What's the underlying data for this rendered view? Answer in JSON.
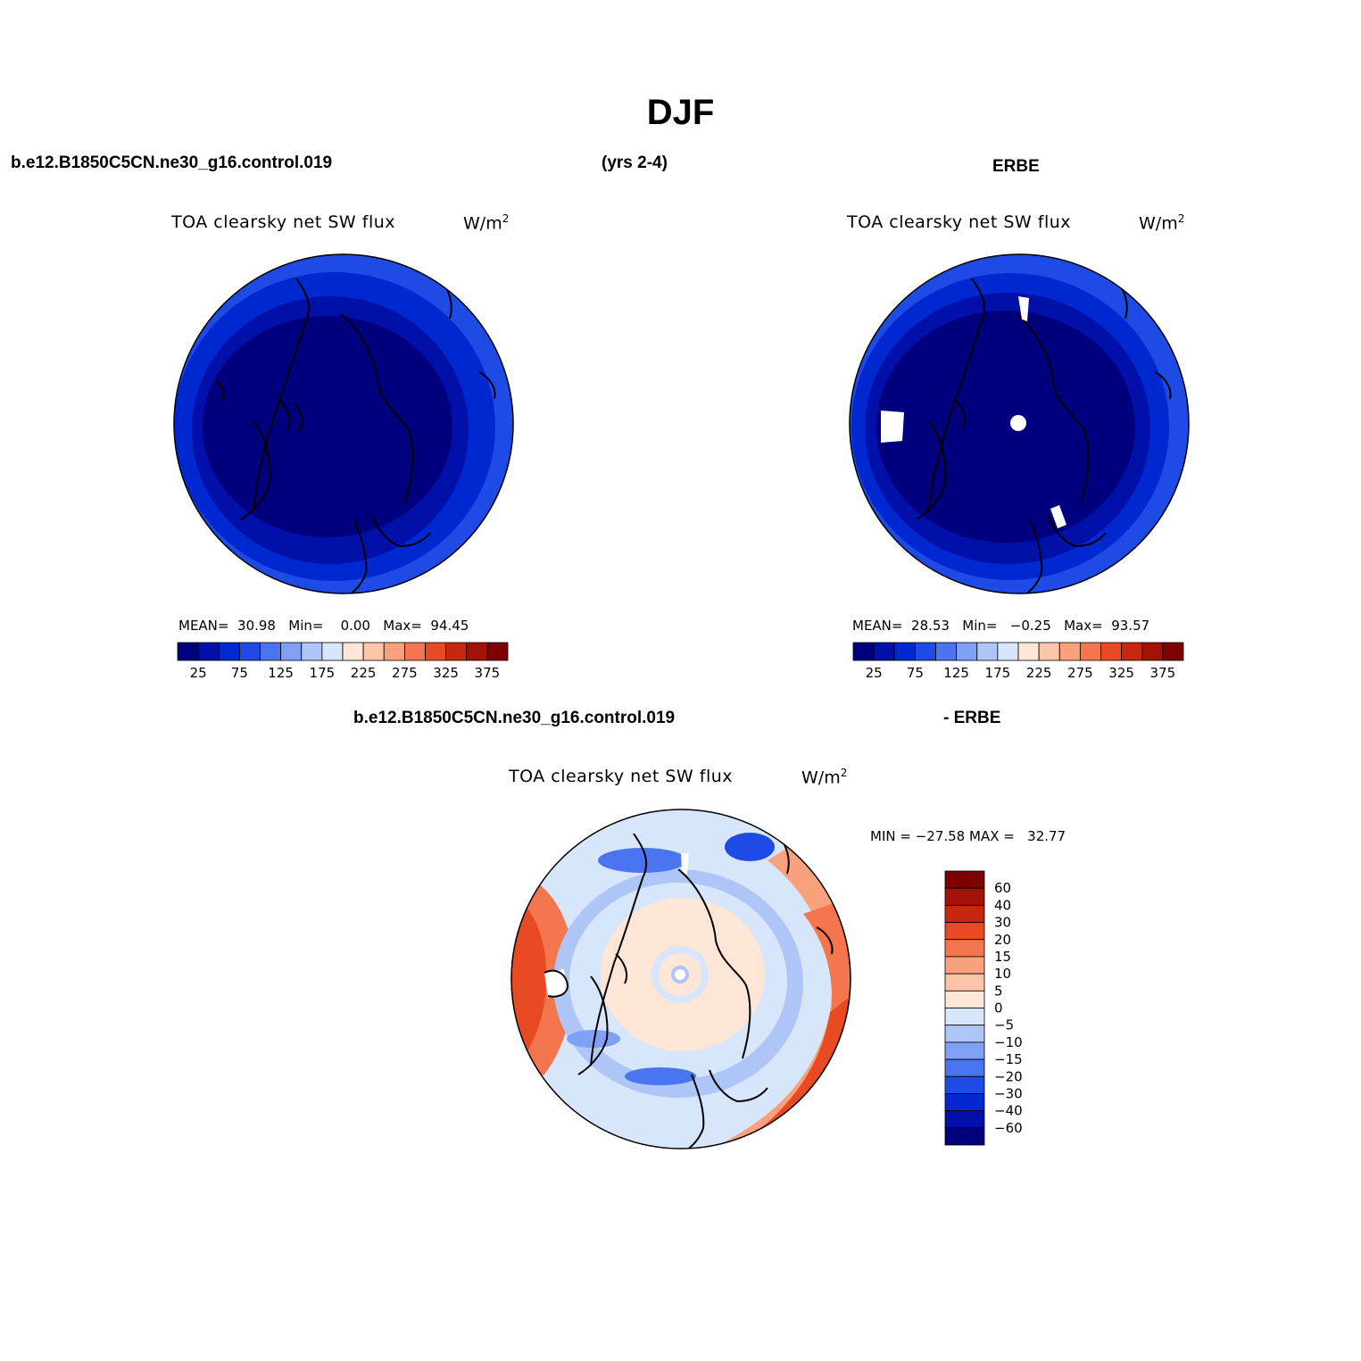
{
  "title": "DJF",
  "header": {
    "left": "b.e12.B1850C5CN.ne30_g16.control.019",
    "center": "(yrs 2-4)",
    "right": "ERBE"
  },
  "diff_header": {
    "left": "b.e12.B1850C5CN.ne30_g16.control.019",
    "right": "- ERBE"
  },
  "panels": [
    {
      "title": "TOA clearsky net SW flux",
      "units_base": "W/m",
      "units_sup": "2",
      "stats": {
        "mean_label": "MEAN=",
        "mean": "30.98",
        "min_label": "Min=",
        "min": "0.00",
        "max_label": "Max=",
        "max": "94.45"
      }
    },
    {
      "title": "TOA clearsky net SW flux",
      "units_base": "W/m",
      "units_sup": "2",
      "stats": {
        "mean_label": "MEAN=",
        "mean": "28.53",
        "min_label": "Min=",
        "min": "−0.25",
        "max_label": "Max=",
        "max": "93.57"
      }
    },
    {
      "title": "TOA clearsky net SW flux",
      "units_base": "W/m",
      "units_sup": "2",
      "stats": {
        "min_label": "MIN =",
        "min": "−27.58",
        "max_label": "MAX =",
        "max": "32.77"
      }
    }
  ],
  "colorbar_abs": {
    "colors": [
      "#00007f",
      "#0010a8",
      "#0028d0",
      "#1e4be6",
      "#4a74f0",
      "#7fa0f5",
      "#aec6f7",
      "#d7e6fa",
      "#fde6d5",
      "#fcc5a8",
      "#f9a07c",
      "#f4764f",
      "#e84a23",
      "#c8260f",
      "#a31207",
      "#7f0000"
    ],
    "labels": [
      "25",
      "75",
      "125",
      "175",
      "225",
      "275",
      "325",
      "375"
    ]
  },
  "colorbar_diff": {
    "colors": [
      "#7f0000",
      "#a31207",
      "#c8260f",
      "#e84a23",
      "#f4764f",
      "#f9a07c",
      "#fcc5a8",
      "#fde6d5",
      "#d7e6fa",
      "#aec6f7",
      "#7fa0f5",
      "#4a74f0",
      "#1e4be6",
      "#0028d0",
      "#0010a8",
      "#00007f"
    ],
    "labels": [
      "60",
      "40",
      "30",
      "20",
      "15",
      "10",
      "5",
      "0",
      "−5",
      "−10",
      "−15",
      "−20",
      "−30",
      "−40",
      "−60"
    ]
  },
  "map_colors": {
    "abs_levels": [
      "#00007f",
      "#0010a8",
      "#0028d0",
      "#1e4be6"
    ],
    "diff_neg": [
      "#d7e6fa",
      "#aec6f7",
      "#7fa0f5",
      "#4a74f0",
      "#1e4be6"
    ],
    "diff_pos": [
      "#fde6d5",
      "#fcc5a8",
      "#f9a07c",
      "#f4764f",
      "#e84a23"
    ]
  }
}
